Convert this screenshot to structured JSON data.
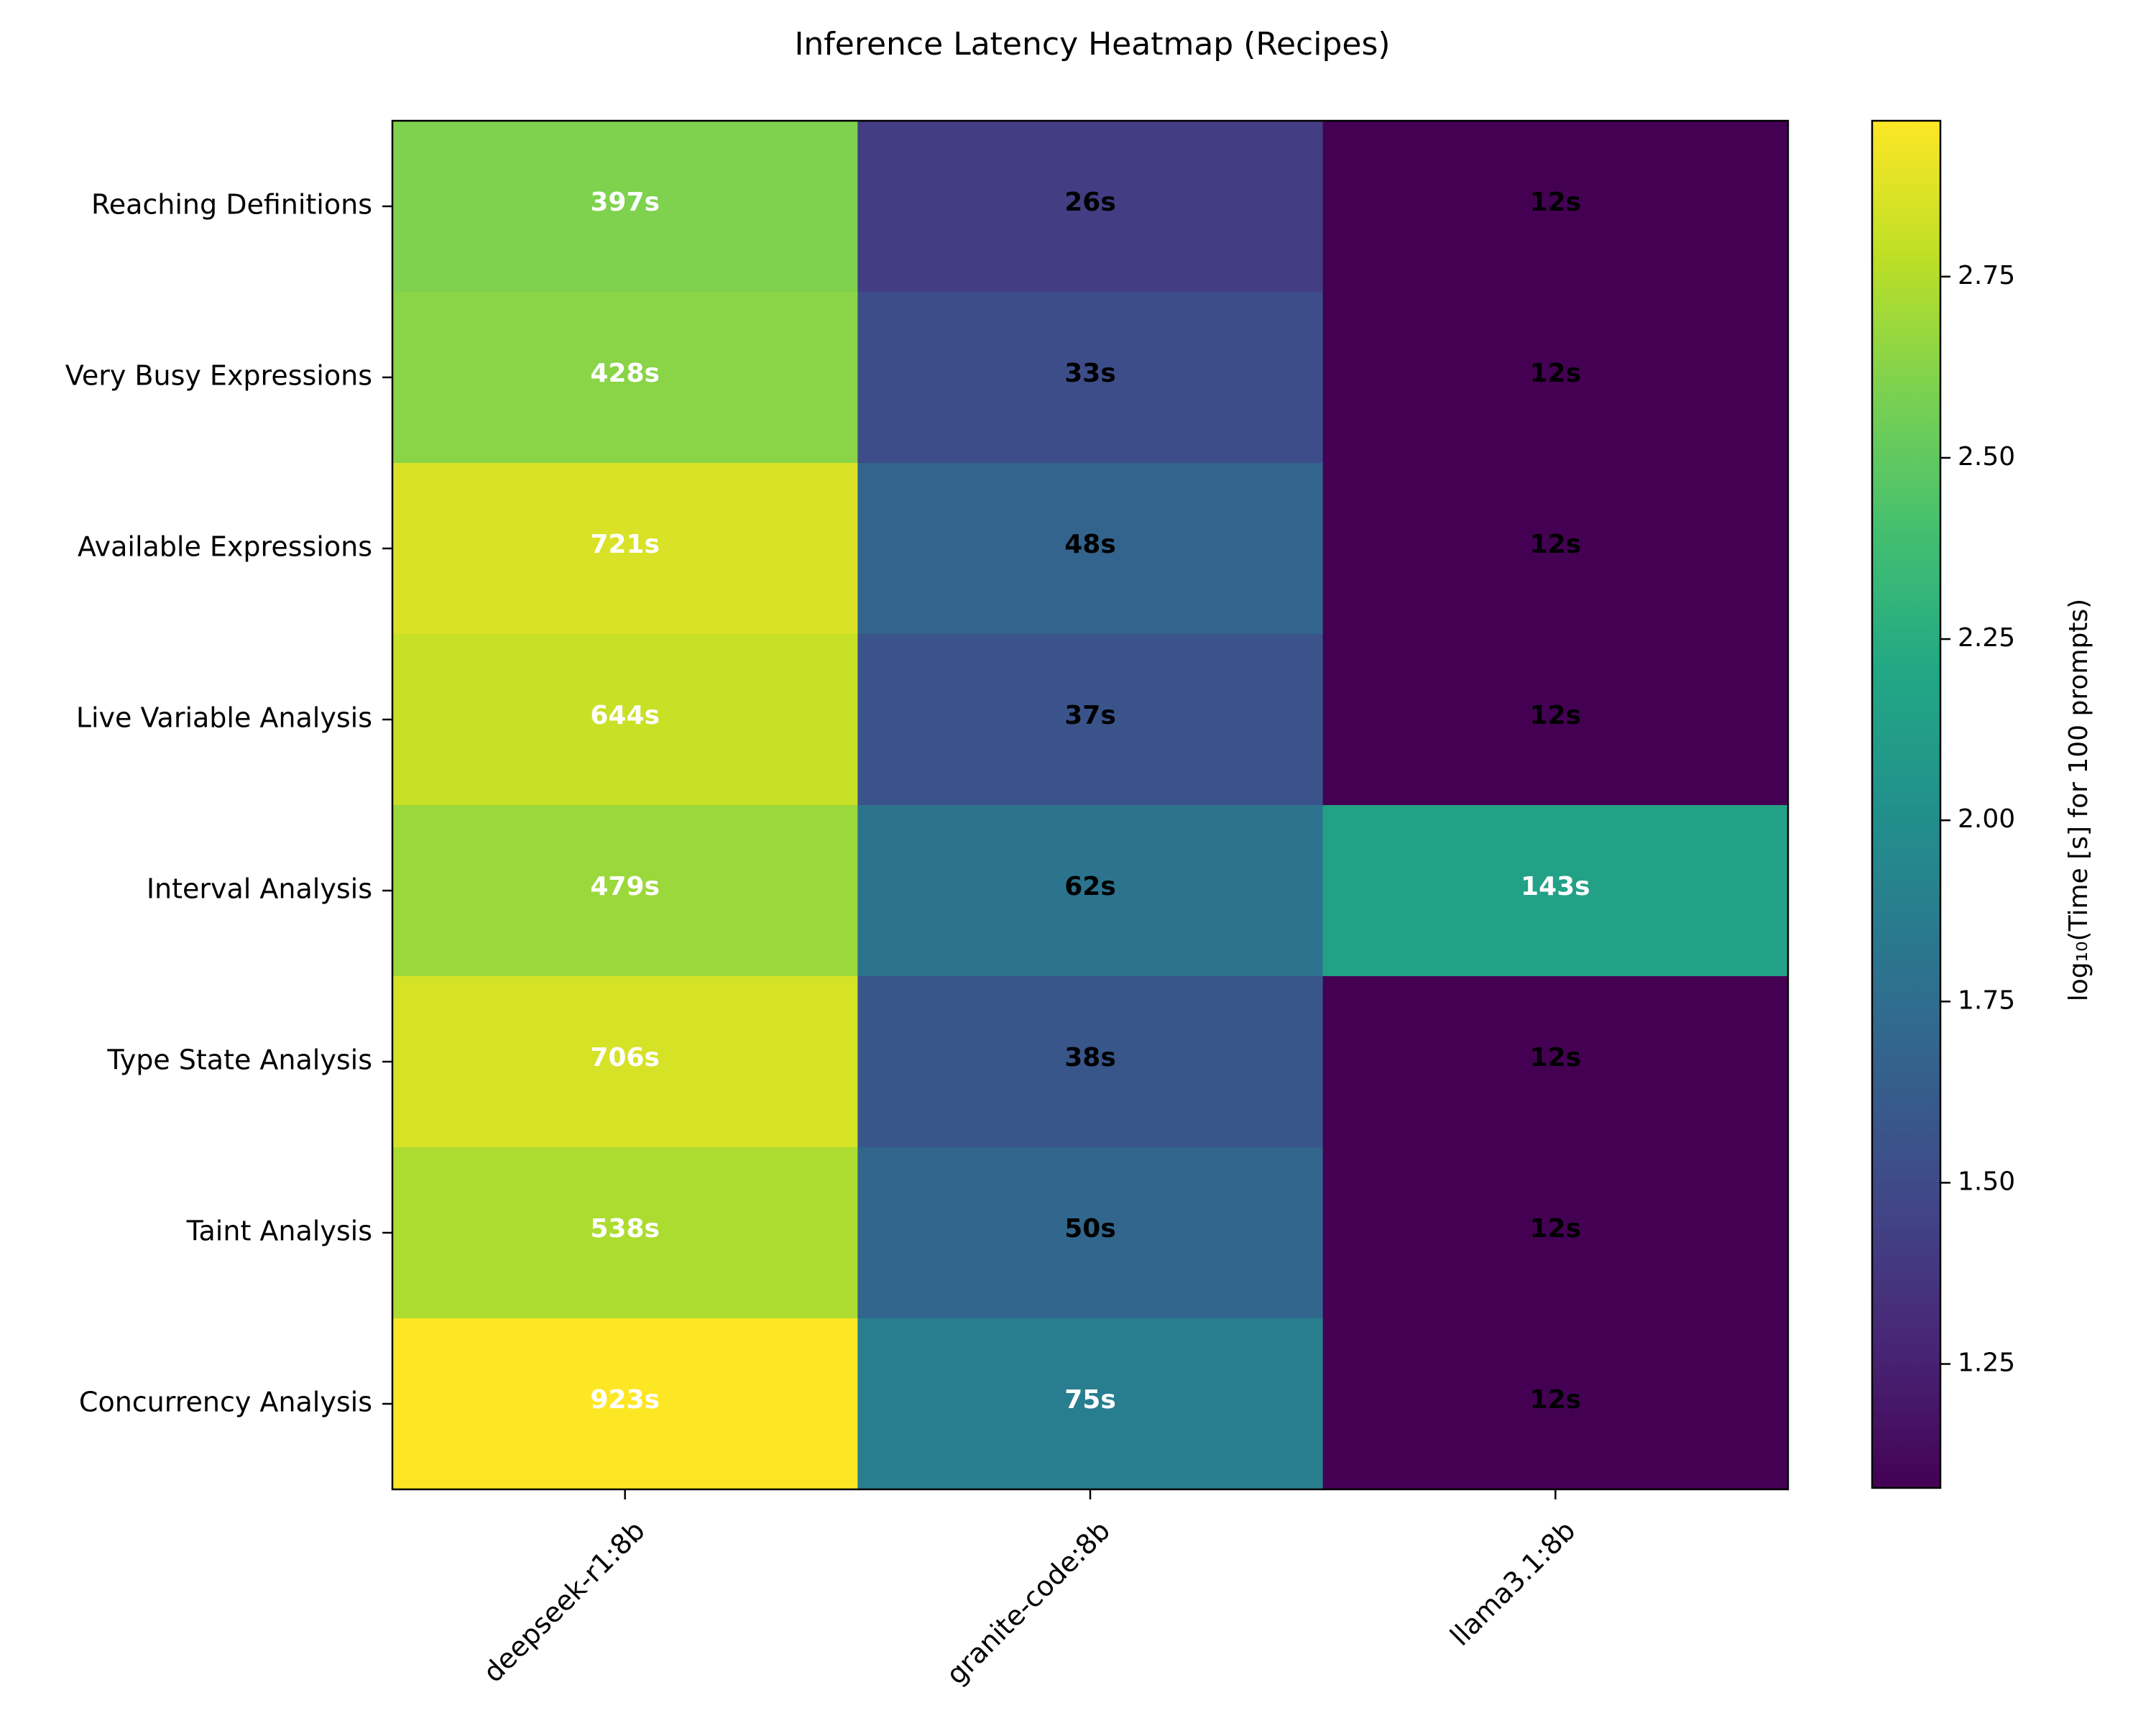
{
  "chart_data": {
    "type": "heatmap",
    "title": "Inference Latency Heatmap (Recipes)",
    "xlabel": "",
    "ylabel": "",
    "rows": [
      "Reaching Definitions",
      "Very Busy Expressions",
      "Available Expressions",
      "Live Variable Analysis",
      "Interval Analysis",
      "Type State Analysis",
      "Taint Analysis",
      "Concurrency Analysis"
    ],
    "columns": [
      "deepseek-r1:8b",
      "granite-code:8b",
      "llama3.1:8b"
    ],
    "values": [
      [
        397,
        26,
        12
      ],
      [
        428,
        33,
        12
      ],
      [
        721,
        48,
        12
      ],
      [
        644,
        37,
        12
      ],
      [
        479,
        62,
        143
      ],
      [
        706,
        38,
        12
      ],
      [
        538,
        50,
        12
      ],
      [
        923,
        75,
        12
      ]
    ],
    "cell_labels": [
      [
        "397s",
        "26s",
        "12s"
      ],
      [
        "428s",
        "33s",
        "12s"
      ],
      [
        "721s",
        "48s",
        "12s"
      ],
      [
        "644s",
        "37s",
        "12s"
      ],
      [
        "479s",
        "62s",
        "143s"
      ],
      [
        "706s",
        "38s",
        "12s"
      ],
      [
        "538s",
        "50s",
        "12s"
      ],
      [
        "923s",
        "75s",
        "12s"
      ]
    ],
    "value_unit": "s",
    "color_scale": "log10",
    "colormap": "viridis",
    "colorbar": {
      "label": "log₁₀(Time [s] for 100 prompts)",
      "range": [
        1.079,
        2.965
      ],
      "ticks": [
        "1.25",
        "1.50",
        "1.75",
        "2.00",
        "2.25",
        "2.50",
        "2.75"
      ],
      "tick_values": [
        1.25,
        1.5,
        1.75,
        2.0,
        2.25,
        2.5,
        2.75
      ]
    },
    "colors": {
      "light_text": "#ffffff",
      "dark_text": "#000000",
      "axis": "#000000"
    }
  }
}
